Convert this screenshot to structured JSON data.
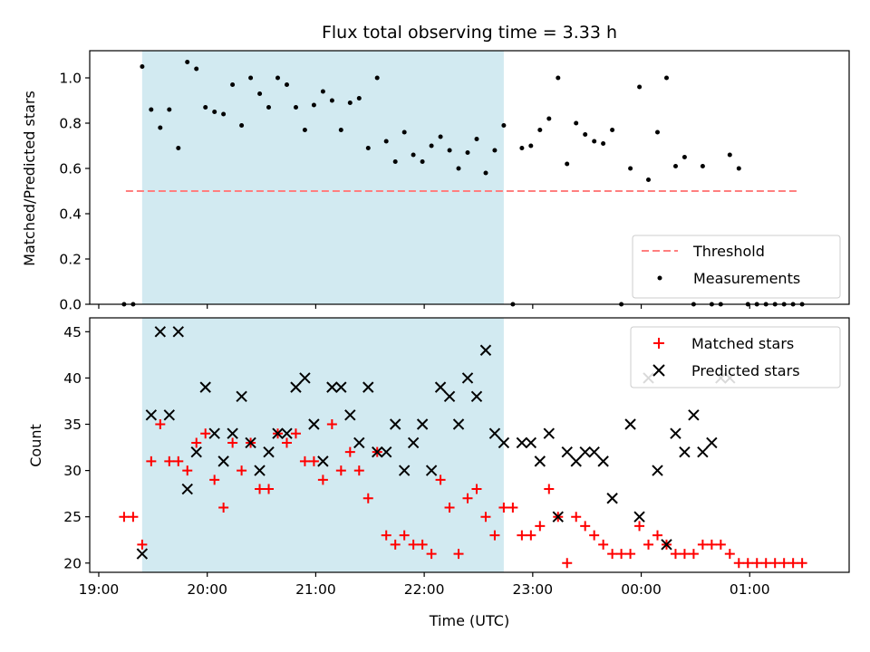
{
  "title": "Flux total observing time = 3.33 h",
  "chart_data": [
    {
      "type": "scatter",
      "panel": "top",
      "ylabel": "Matched/Predicted stars",
      "ylim": [
        0,
        1.12
      ],
      "yticks": [
        0.0,
        0.2,
        0.4,
        0.6,
        0.8,
        1.0
      ],
      "ytick_labels": [
        "0.0",
        "0.2",
        "0.4",
        "0.6",
        "0.8",
        "1.0"
      ],
      "threshold": {
        "name": "Threshold",
        "value": 0.5,
        "x_start": "19:15",
        "x_end": "01:27",
        "color": "#ff7f7f"
      },
      "observing_window": {
        "start": "19:24",
        "end": "22:44",
        "color": "#add8e6"
      },
      "legend": [
        "Threshold",
        "Measurements"
      ],
      "legend_position": "lower right",
      "series": [
        {
          "name": "Measurements",
          "color": "#000000",
          "x": [
            "19:14",
            "19:19",
            "19:24",
            "19:29",
            "19:34",
            "19:39",
            "19:44",
            "19:49",
            "19:54",
            "19:59",
            "20:04",
            "20:09",
            "20:14",
            "20:19",
            "20:24",
            "20:29",
            "20:34",
            "20:39",
            "20:44",
            "20:49",
            "20:54",
            "20:59",
            "21:04",
            "21:09",
            "21:14",
            "21:19",
            "21:24",
            "21:29",
            "21:34",
            "21:39",
            "21:44",
            "21:49",
            "21:54",
            "21:59",
            "22:04",
            "22:09",
            "22:14",
            "22:19",
            "22:24",
            "22:29",
            "22:34",
            "22:39",
            "22:44",
            "22:49",
            "22:54",
            "22:59",
            "23:04",
            "23:09",
            "23:14",
            "23:19",
            "23:24",
            "23:29",
            "23:34",
            "23:39",
            "23:44",
            "23:49",
            "23:54",
            "23:59",
            "00:04",
            "00:09",
            "00:14",
            "00:19",
            "00:24",
            "00:29",
            "00:34",
            "00:39",
            "00:44",
            "00:49",
            "00:54",
            "00:59",
            "01:04",
            "01:09",
            "01:14",
            "01:19",
            "01:24",
            "01:29"
          ],
          "y": [
            0.0,
            0.0,
            1.05,
            0.86,
            0.78,
            0.86,
            0.69,
            1.07,
            1.04,
            0.87,
            0.85,
            0.84,
            0.97,
            0.79,
            1.0,
            0.93,
            0.87,
            1.0,
            0.97,
            0.87,
            0.77,
            0.88,
            0.94,
            0.9,
            0.77,
            0.89,
            0.91,
            0.69,
            1.0,
            0.72,
            0.63,
            0.76,
            0.66,
            0.63,
            0.7,
            0.74,
            0.68,
            0.6,
            0.67,
            0.73,
            0.58,
            0.68,
            0.79,
            0.0,
            0.69,
            0.7,
            0.77,
            0.82,
            1.0,
            0.62,
            0.8,
            0.75,
            0.72,
            0.71,
            0.77,
            0.0,
            0.6,
            0.96,
            0.55,
            0.76,
            1.0,
            0.61,
            0.65,
            0.0,
            0.61,
            0.0,
            0.0,
            0.66,
            0.6,
            0.0,
            0.0,
            0.0,
            0.0,
            0.0,
            0.0,
            0.0
          ]
        }
      ]
    },
    {
      "type": "scatter",
      "panel": "bottom",
      "xlabel": "Time (UTC)",
      "ylabel": "Count",
      "ylim": [
        19,
        46.5
      ],
      "yticks": [
        20,
        25,
        30,
        35,
        40,
        45
      ],
      "ytick_labels": [
        "20",
        "25",
        "30",
        "35",
        "40",
        "45"
      ],
      "xlim": [
        "18:55",
        "01:55"
      ],
      "xticks": [
        "19:00",
        "20:00",
        "21:00",
        "22:00",
        "23:00",
        "00:00",
        "01:00"
      ],
      "xtick_labels": [
        "19:00",
        "20:00",
        "21:00",
        "22:00",
        "23:00",
        "00:00",
        "01:00"
      ],
      "observing_window": {
        "start": "19:24",
        "end": "22:44",
        "color": "#add8e6"
      },
      "legend": [
        "Matched stars",
        "Predicted stars"
      ],
      "legend_position": "upper right",
      "series": [
        {
          "name": "Matched stars",
          "marker": "plus",
          "color": "#ff0000",
          "x": [
            "19:14",
            "19:19",
            "19:24",
            "19:29",
            "19:34",
            "19:39",
            "19:44",
            "19:49",
            "19:54",
            "19:59",
            "20:04",
            "20:09",
            "20:14",
            "20:19",
            "20:24",
            "20:29",
            "20:34",
            "20:39",
            "20:44",
            "20:49",
            "20:54",
            "20:59",
            "21:04",
            "21:09",
            "21:14",
            "21:19",
            "21:24",
            "21:29",
            "21:34",
            "21:39",
            "21:44",
            "21:49",
            "21:54",
            "21:59",
            "22:04",
            "22:09",
            "22:14",
            "22:19",
            "22:24",
            "22:29",
            "22:34",
            "22:39",
            "22:44",
            "22:49",
            "22:54",
            "22:59",
            "23:04",
            "23:09",
            "23:14",
            "23:19",
            "23:24",
            "23:29",
            "23:34",
            "23:39",
            "23:44",
            "23:49",
            "23:54",
            "23:59",
            "00:04",
            "00:09",
            "00:14",
            "00:19",
            "00:24",
            "00:29",
            "00:34",
            "00:39",
            "00:44",
            "00:49",
            "00:54",
            "00:59",
            "01:04",
            "01:09",
            "01:14",
            "01:19",
            "01:24",
            "01:29"
          ],
          "y": [
            25,
            25,
            22,
            31,
            35,
            31,
            31,
            30,
            33,
            34,
            29,
            26,
            33,
            30,
            33,
            28,
            28,
            34,
            33,
            34,
            31,
            31,
            29,
            35,
            30,
            32,
            30,
            27,
            32,
            23,
            22,
            23,
            22,
            22,
            21,
            29,
            26,
            21,
            27,
            28,
            25,
            23,
            26,
            26,
            23,
            23,
            24,
            28,
            25,
            20,
            25,
            24,
            23,
            22,
            21,
            21,
            21,
            24,
            22,
            23,
            22,
            21,
            21,
            21,
            22,
            22,
            22,
            21,
            20,
            20,
            20,
            20,
            20,
            20,
            20,
            20
          ]
        },
        {
          "name": "Predicted stars",
          "marker": "x",
          "color": "#000000",
          "x": [
            "19:24",
            "19:29",
            "19:34",
            "19:39",
            "19:44",
            "19:49",
            "19:54",
            "19:59",
            "20:04",
            "20:09",
            "20:14",
            "20:19",
            "20:24",
            "20:29",
            "20:34",
            "20:39",
            "20:44",
            "20:49",
            "20:54",
            "20:59",
            "21:04",
            "21:09",
            "21:14",
            "21:19",
            "21:24",
            "21:29",
            "21:34",
            "21:39",
            "21:44",
            "21:49",
            "21:54",
            "21:59",
            "22:04",
            "22:09",
            "22:14",
            "22:19",
            "22:24",
            "22:29",
            "22:34",
            "22:39",
            "22:44",
            "22:54",
            "22:59",
            "23:04",
            "23:09",
            "23:14",
            "23:19",
            "23:24",
            "23:29",
            "23:34",
            "23:39",
            "23:44",
            "23:54",
            "23:59",
            "00:04",
            "00:09",
            "00:14",
            "00:19",
            "00:24",
            "00:29",
            "00:34",
            "00:39",
            "00:44",
            "00:49"
          ],
          "y": [
            21,
            36,
            45,
            36,
            45,
            28,
            32,
            39,
            34,
            31,
            34,
            38,
            33,
            30,
            32,
            34,
            34,
            39,
            40,
            35,
            31,
            39,
            39,
            36,
            33,
            39,
            32,
            32,
            35,
            30,
            33,
            35,
            30,
            39,
            38,
            35,
            40,
            38,
            43,
            34,
            33,
            33,
            33,
            31,
            34,
            25,
            32,
            31,
            32,
            32,
            31,
            27,
            35,
            25,
            40,
            30,
            22,
            34,
            32,
            36,
            32,
            33,
            40,
            40
          ]
        }
      ]
    }
  ]
}
